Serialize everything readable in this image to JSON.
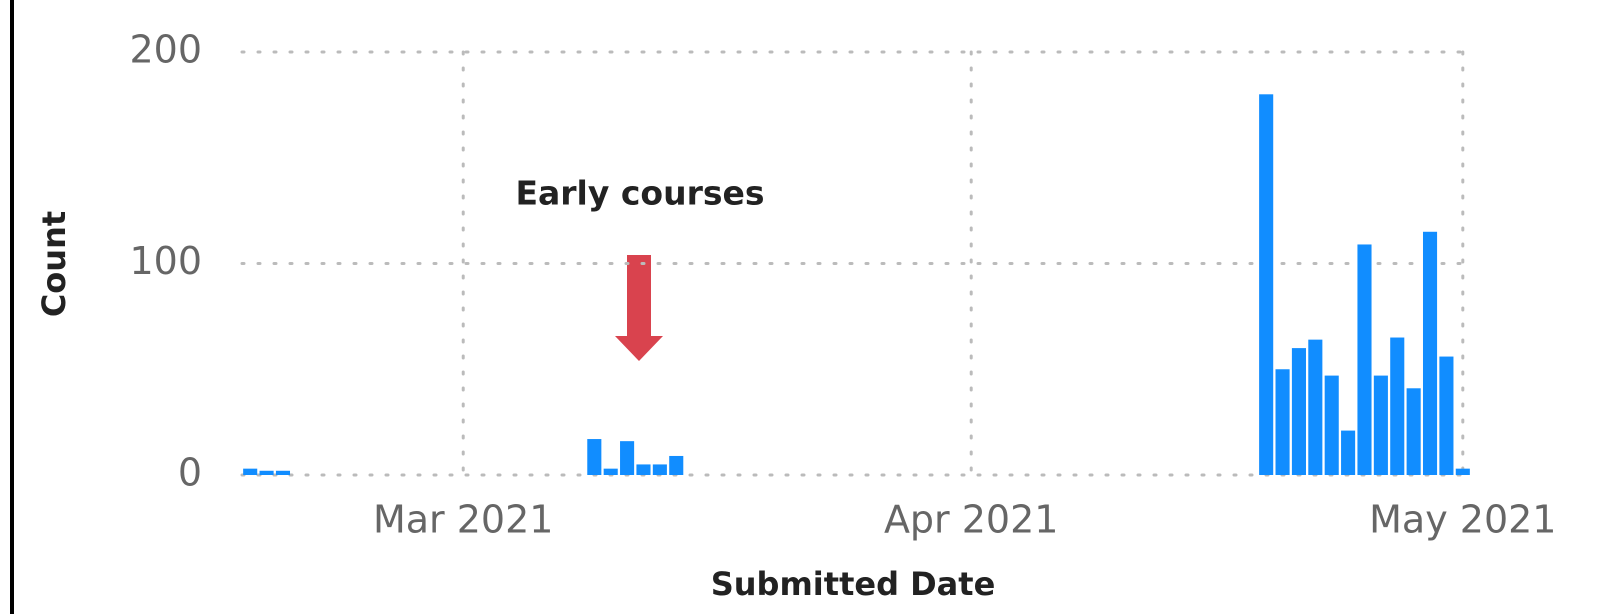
{
  "chart_data": {
    "type": "bar",
    "x_label": "Submitted Date",
    "y_label": "Count",
    "annotation": "Early courses",
    "x": [
      47,
      48,
      49,
      68,
      69,
      70,
      71,
      72,
      73,
      109,
      110,
      111,
      112,
      113,
      114,
      115,
      116,
      117,
      118,
      119,
      120,
      121
    ],
    "values": [
      3,
      2,
      2,
      17,
      3,
      16,
      5,
      5,
      9,
      180,
      50,
      60,
      64,
      47,
      21,
      109,
      47,
      65,
      41,
      115,
      56,
      3
    ],
    "color": "#118dff",
    "xlim": [
      46.5,
      121.5
    ],
    "xticks": [
      {
        "value": 60,
        "label": "Mar 2021"
      },
      {
        "value": 91,
        "label": "Apr 2021"
      },
      {
        "value": 121,
        "label": "May 2021"
      }
    ],
    "ylim": [
      0,
      200
    ],
    "yticks": [
      0,
      100,
      200
    ],
    "grid": true
  }
}
